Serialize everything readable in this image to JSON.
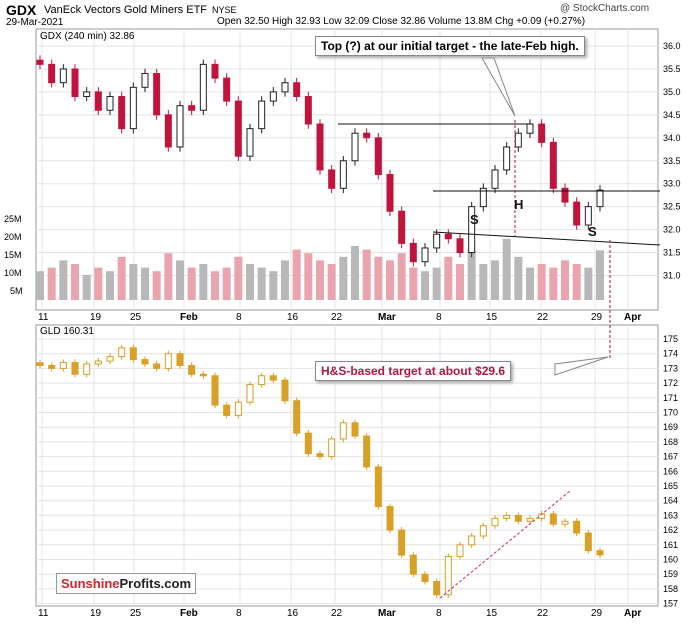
{
  "header": {
    "symbol": "GDX",
    "name": "VanEck Vectors Gold Miners ETF",
    "exchange": "NYSE",
    "date": "29-Mar-2021",
    "ohlc": "Open 32.50  High 32.93  Low 32.09  Close 32.86  Volume 13.8M  Chg +0.09 (+0.27%)",
    "credit": "@ StockCharts.com"
  },
  "panels": {
    "gdx_label": "GDX (240 min) 32.86",
    "gld_label": "GLD 160.31",
    "vol_labels": [
      "25M",
      "20M",
      "15M",
      "10M",
      "5M"
    ]
  },
  "annotations": {
    "top_callout": "Top (?) at our initial target - the late-Feb high.",
    "hs_callout": "H&S-based target at about $29.6",
    "left_shoulder": "S",
    "head": "H",
    "right_shoulder": "S"
  },
  "watermark": {
    "part1": "Sunshine",
    "part2": "Profits.com"
  },
  "colors": {
    "up": "#222222",
    "down": "#c0143c",
    "gld": "#d9a026",
    "vol_up": "#b8b8b8",
    "vol_down": "#e9a4ae",
    "accent": "#b0173d"
  },
  "chart_data": [
    {
      "type": "candlestick",
      "title": "GDX (240 min) 32.86",
      "x_tick_labels": [
        "11",
        "19",
        "25",
        "Feb",
        "8",
        "16",
        "22",
        "Mar",
        "8",
        "15",
        "22",
        "29",
        "Apr"
      ],
      "y_tick_labels": [
        "31.0",
        "31.5",
        "32.0",
        "32.5",
        "33.0",
        "33.5",
        "34.0",
        "34.5",
        "35.0",
        "35.5",
        "36.0"
      ],
      "ylim": [
        30.6,
        36.3
      ],
      "last_close": 32.86,
      "approx_closes": [
        35.6,
        35.2,
        35.5,
        34.9,
        35.0,
        34.6,
        34.9,
        34.2,
        35.1,
        35.4,
        34.5,
        33.8,
        34.7,
        34.6,
        35.6,
        35.3,
        34.8,
        33.6,
        34.2,
        34.8,
        35.0,
        35.2,
        34.9,
        34.3,
        33.3,
        32.9,
        33.5,
        34.1,
        34.0,
        33.2,
        32.4,
        31.7,
        31.3,
        31.6,
        31.9,
        31.8,
        31.5,
        32.5,
        32.9,
        33.3,
        33.8,
        34.1,
        34.3,
        33.9,
        32.9,
        32.6,
        32.1,
        32.5,
        32.86
      ],
      "resistance_level": 34.4,
      "neckline_level": 33.0,
      "hs_target": 29.6
    },
    {
      "type": "bar",
      "title": "Volume",
      "y_tick_labels": [
        "5M",
        "10M",
        "15M",
        "20M",
        "25M"
      ],
      "approx_values_M": [
        8,
        9,
        11,
        10,
        7,
        9,
        8,
        12,
        10,
        9,
        8,
        13,
        11,
        9,
        10,
        8,
        9,
        12,
        10,
        9,
        8,
        11,
        14,
        13,
        11,
        10,
        12,
        15,
        14,
        12,
        11,
        13,
        9,
        8,
        9,
        12,
        10,
        14,
        10,
        11,
        17,
        12,
        9,
        10,
        9,
        11,
        10,
        9,
        13.8
      ],
      "last_volume_M": 13.8
    },
    {
      "type": "candlestick",
      "title": "GLD 160.31",
      "x_tick_labels": [
        "11",
        "19",
        "25",
        "Feb",
        "8",
        "16",
        "22",
        "Mar",
        "8",
        "15",
        "22",
        "29",
        "Apr"
      ],
      "y_tick_labels": [
        "157",
        "158",
        "159",
        "160",
        "161",
        "162",
        "163",
        "164",
        "165",
        "166",
        "167",
        "168",
        "169",
        "170",
        "171",
        "172",
        "173",
        "174",
        "175"
      ],
      "ylim": [
        156.6,
        175.6
      ],
      "last_close": 160.31,
      "approx_closes": [
        173.2,
        173.0,
        173.4,
        172.6,
        173.3,
        173.5,
        173.8,
        174.4,
        173.6,
        173.3,
        173.0,
        174.0,
        173.2,
        172.6,
        172.5,
        170.5,
        169.8,
        170.7,
        171.9,
        172.5,
        172.2,
        170.8,
        168.6,
        167.2,
        167.0,
        168.2,
        169.3,
        168.4,
        166.3,
        163.6,
        162.0,
        160.3,
        159.0,
        158.5,
        157.6,
        160.2,
        161.0,
        161.6,
        162.3,
        162.8,
        163.0,
        162.6,
        162.8,
        163.1,
        162.4,
        162.6,
        161.8,
        160.6,
        160.31
      ]
    }
  ]
}
